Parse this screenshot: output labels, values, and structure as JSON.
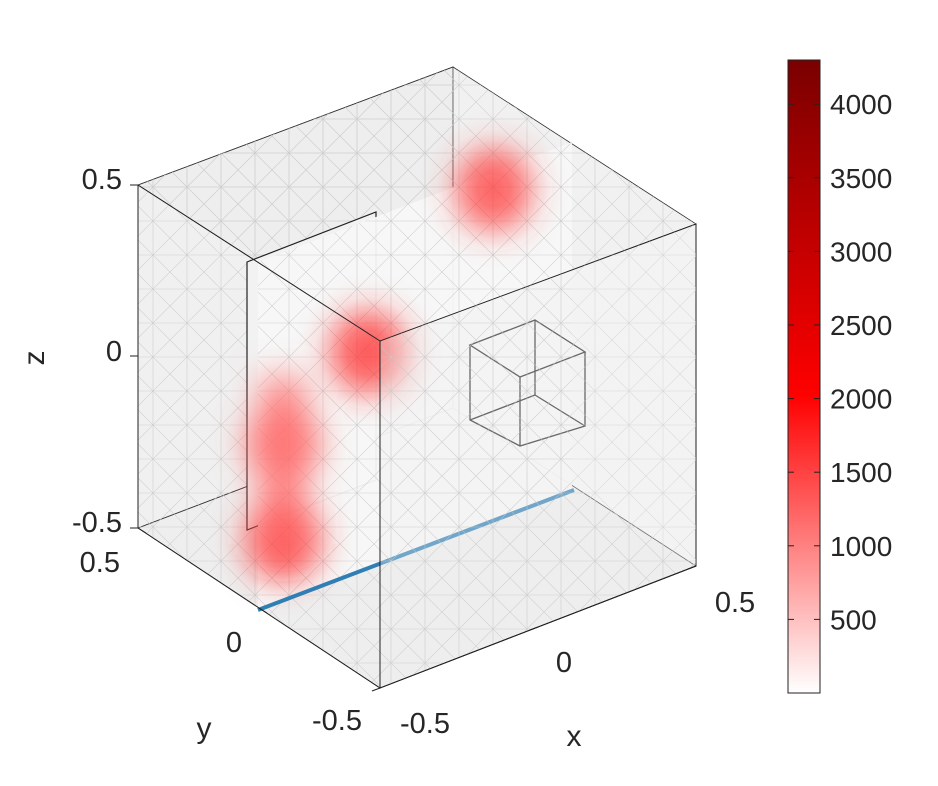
{
  "chart_data": {
    "type": "heatmap",
    "projection": "3d-box",
    "x_axis": {
      "label": "x",
      "ticks": [
        "-0.5",
        "0",
        "0.5"
      ],
      "range": [
        -0.5,
        0.5
      ]
    },
    "y_axis": {
      "label": "y",
      "ticks": [
        "-0.5",
        "0",
        "0.5"
      ],
      "range": [
        -0.5,
        0.5
      ]
    },
    "z_axis": {
      "label": "z",
      "ticks": [
        "-0.5",
        "0",
        "0.5"
      ],
      "range": [
        -0.5,
        0.5
      ]
    },
    "colorbar": {
      "ticks": [
        "500",
        "1000",
        "1500",
        "2000",
        "2500",
        "3000",
        "3500",
        "4000"
      ],
      "range": [
        0,
        4300
      ],
      "colormap": [
        "#ffffff",
        "#ff0000",
        "#800000"
      ]
    },
    "hotspots": [
      {
        "x": -0.42,
        "y": 0.0,
        "z": -0.32,
        "value": 1900
      },
      {
        "x": -0.42,
        "y": 0.0,
        "z": -0.05,
        "value": 1300
      },
      {
        "x": -0.15,
        "y": 0.0,
        "z": 0.12,
        "value": 1700
      },
      {
        "x": 0.25,
        "y": 0.0,
        "z": 0.45,
        "value": 1600
      }
    ],
    "line_color": "#2f7fb5",
    "grid": true
  }
}
